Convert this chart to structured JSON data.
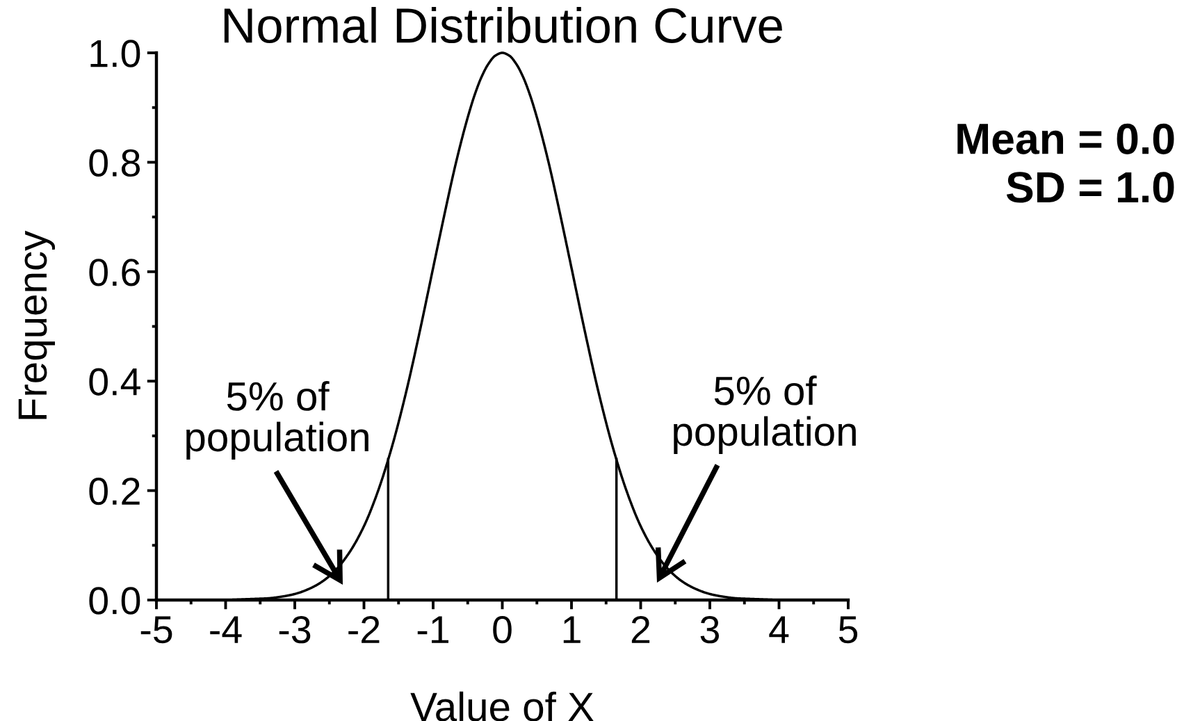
{
  "chart_data": {
    "type": "line",
    "title": "Normal Distribution Curve",
    "xlabel": "Value of X",
    "ylabel": "Frequency",
    "series": [
      {
        "color": "#000000",
        "x": [
          -4.0,
          -3.8,
          -3.6,
          -3.4,
          -3.2,
          -3.0,
          -2.8,
          -2.6,
          -2.4,
          -2.2,
          -2.0,
          -1.8,
          -1.6,
          -1.4,
          -1.2,
          -1.0,
          -0.9,
          -0.8,
          -0.7,
          -0.6,
          -0.5,
          -0.4,
          -0.3,
          -0.2,
          -0.1,
          0.0,
          0.1,
          0.2,
          0.3,
          0.4,
          0.5,
          0.6,
          0.7,
          0.8,
          0.9,
          1.0,
          1.2,
          1.4,
          1.6,
          1.8,
          2.0,
          2.2,
          2.4,
          2.6,
          2.8,
          3.0,
          3.2,
          3.4,
          3.6,
          3.8,
          4.0
        ],
        "values": [
          0.0,
          0.001,
          0.002,
          0.003,
          0.006,
          0.011,
          0.02,
          0.034,
          0.056,
          0.089,
          0.135,
          0.198,
          0.278,
          0.375,
          0.487,
          0.607,
          0.667,
          0.726,
          0.783,
          0.835,
          0.882,
          0.923,
          0.956,
          0.98,
          0.995,
          1.0,
          0.995,
          0.98,
          0.956,
          0.923,
          0.882,
          0.835,
          0.783,
          0.726,
          0.667,
          0.607,
          0.487,
          0.375,
          0.278,
          0.198,
          0.135,
          0.089,
          0.056,
          0.034,
          0.02,
          0.011,
          0.006,
          0.003,
          0.002,
          0.001,
          0.0
        ]
      },
      {
        "color": "#000000",
        "x": [
          -1.65,
          -1.65
        ],
        "values": [
          0,
          0.26
        ]
      },
      {
        "color": "#000000",
        "x": [
          1.65,
          1.65
        ],
        "values": [
          0,
          0.26
        ]
      }
    ],
    "xlim": [
      -5,
      5
    ],
    "ylim": [
      0,
      1
    ],
    "xticks": [
      -5,
      {
        "value": -4.5,
        "label": null
      },
      -4,
      {
        "value": -3.5,
        "label": null
      },
      -3,
      {
        "value": -2.5,
        "label": null
      },
      -2,
      {
        "value": -1.5,
        "label": null
      },
      -1,
      {
        "value": -0.5,
        "label": null
      },
      0,
      {
        "value": 0.5,
        "label": null
      },
      1,
      {
        "value": 1.5,
        "label": null
      },
      2,
      {
        "value": 2.5,
        "label": null
      },
      3,
      {
        "value": 3.5,
        "label": null
      },
      4,
      {
        "value": 4.5,
        "label": null
      },
      5
    ],
    "yticks": [
      {
        "value": 0,
        "label": "0.0"
      },
      {
        "value": 0.1,
        "label": null
      },
      0.2,
      {
        "value": 0.3,
        "label": null
      },
      0.4,
      {
        "value": 0.5,
        "label": null
      },
      0.6,
      {
        "value": 0.7,
        "label": null
      },
      0.8,
      {
        "value": 0.9,
        "label": null
      },
      {
        "value": 1,
        "label": "1.0"
      }
    ],
    "annotations": [
      "5% of\npopulation",
      "5% of\npopulation",
      "Mean = 0.0\nSD = 1.0"
    ]
  }
}
